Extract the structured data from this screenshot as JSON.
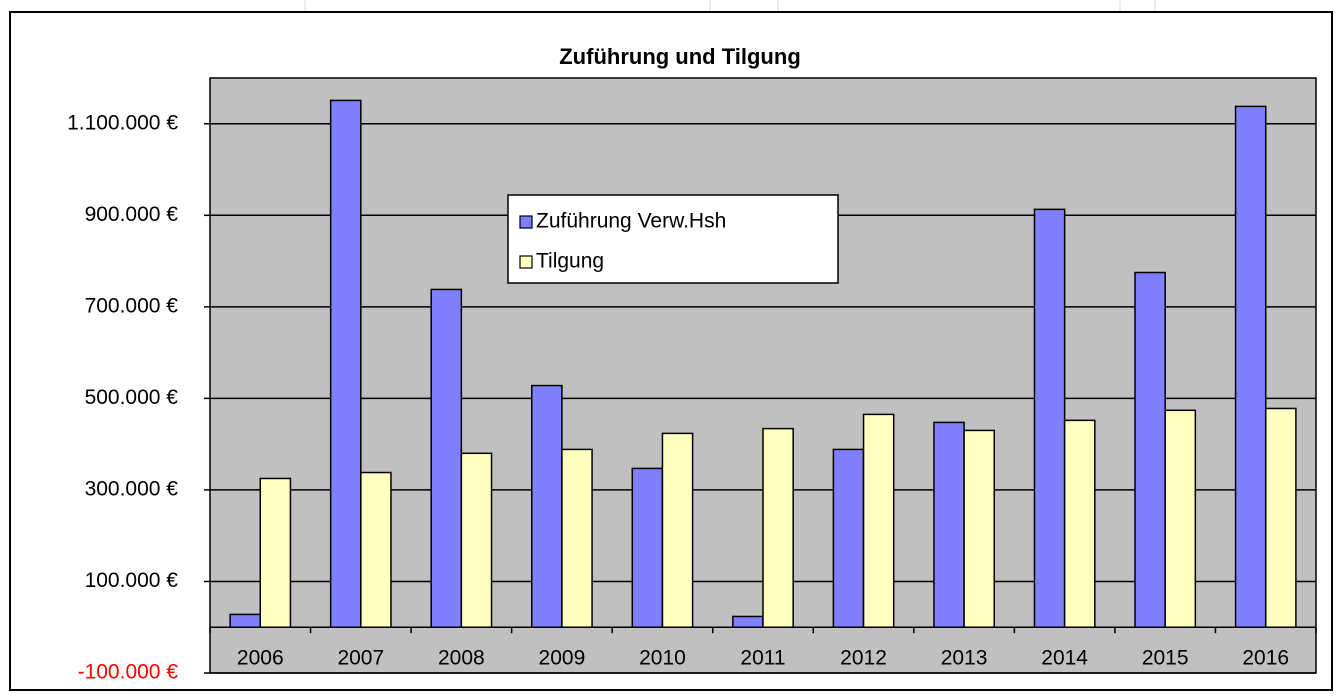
{
  "chart_data": {
    "type": "bar",
    "title": "Zuführung und Tilgung",
    "categories": [
      "2006",
      "2007",
      "2008",
      "2009",
      "2010",
      "2011",
      "2012",
      "2013",
      "2014",
      "2015",
      "2016"
    ],
    "series": [
      {
        "name": "Zuführung Verw.Hsh",
        "color": "#8080ff",
        "values": [
          28000,
          1151000,
          738000,
          528000,
          347000,
          23500,
          388500,
          447500,
          913000,
          775000,
          1138000
        ]
      },
      {
        "name": "Tilgung",
        "color": "#ffffc0",
        "values": [
          325000,
          338000,
          380000,
          388500,
          423500,
          434000,
          465000,
          430000,
          452000,
          474000,
          478000
        ]
      }
    ],
    "ylim": [
      -100000,
      1200000
    ],
    "yticks": [
      {
        "value": -100000,
        "label": "-100.000 €"
      },
      {
        "value": 100000,
        "label": "100.000 €"
      },
      {
        "value": 300000,
        "label": "300.000 €"
      },
      {
        "value": 500000,
        "label": "500.000 €"
      },
      {
        "value": 700000,
        "label": "700.000 €"
      },
      {
        "value": 900000,
        "label": "900.000 €"
      },
      {
        "value": 1100000,
        "label": "1.100.000 €"
      }
    ],
    "grid": true,
    "plot_background": "#c0c0c0",
    "negative_tick_color": "#ff0000",
    "legend": "center"
  }
}
